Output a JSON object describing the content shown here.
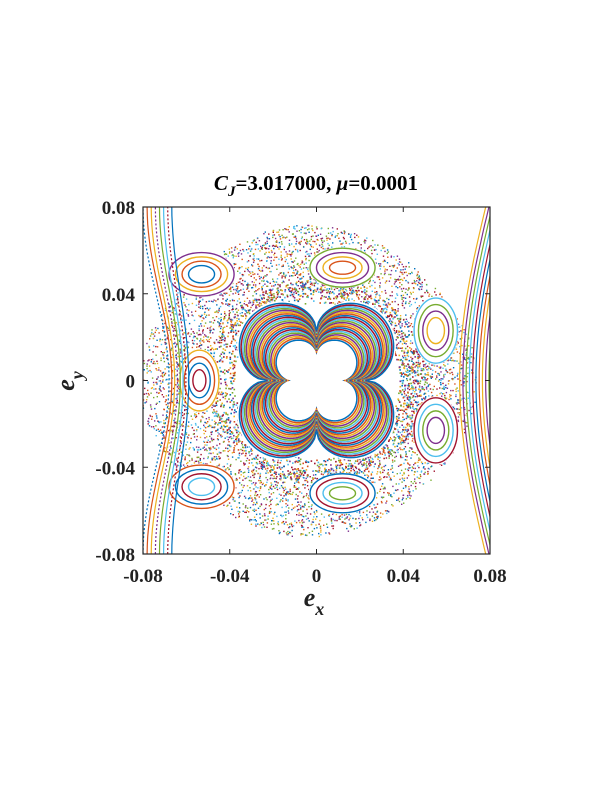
{
  "chart_data": {
    "type": "scatter",
    "title_parts": {
      "var": "C",
      "sub": "J",
      "rest": "=3.017000, ",
      "greek": "μ",
      "tail": "=0.0001"
    },
    "xlabel": {
      "main": "e",
      "sub": "x"
    },
    "ylabel": {
      "main": "e",
      "sub": "y"
    },
    "xlim": [
      -0.08,
      0.08
    ],
    "ylim": [
      -0.08,
      0.08
    ],
    "x_ticks": [
      -0.08,
      -0.04,
      0,
      0.04,
      0.08
    ],
    "y_ticks": [
      -0.08,
      -0.04,
      0,
      0.04,
      0.08
    ],
    "x_tick_labels": [
      "-0.08",
      "-0.04",
      "0",
      "0.04",
      "0.08"
    ],
    "y_tick_labels": [
      "-0.08",
      "-0.04",
      "0",
      "0.04",
      "0.08"
    ],
    "grid": false,
    "legend": "none",
    "series": [
      {
        "kind": "island",
        "center": [
          -0.053,
          0.049
        ],
        "radii": [
          [
            0.006,
            0.004
          ],
          [
            0.009,
            0.006
          ],
          [
            0.012,
            0.008
          ],
          [
            0.015,
            0.01
          ]
        ]
      },
      {
        "kind": "island",
        "center": [
          0.012,
          0.052
        ],
        "radii": [
          [
            0.006,
            0.003
          ],
          [
            0.009,
            0.005
          ],
          [
            0.012,
            0.007
          ],
          [
            0.015,
            0.009
          ]
        ]
      },
      {
        "kind": "island",
        "center": [
          0.055,
          0.023
        ],
        "radii": [
          [
            0.004,
            0.006
          ],
          [
            0.006,
            0.009
          ],
          [
            0.008,
            0.012
          ],
          [
            0.01,
            0.015
          ]
        ]
      },
      {
        "kind": "island",
        "center": [
          0.055,
          -0.023
        ],
        "radii": [
          [
            0.004,
            0.006
          ],
          [
            0.006,
            0.009
          ],
          [
            0.008,
            0.012
          ],
          [
            0.01,
            0.015
          ]
        ]
      },
      {
        "kind": "island",
        "center": [
          0.012,
          -0.052
        ],
        "radii": [
          [
            0.006,
            0.003
          ],
          [
            0.009,
            0.005
          ],
          [
            0.012,
            0.007
          ],
          [
            0.015,
            0.009
          ]
        ]
      },
      {
        "kind": "island",
        "center": [
          -0.053,
          -0.049
        ],
        "radii": [
          [
            0.006,
            0.004
          ],
          [
            0.009,
            0.006
          ],
          [
            0.012,
            0.008
          ],
          [
            0.015,
            0.01
          ]
        ]
      },
      {
        "kind": "island",
        "center": [
          -0.054,
          0.0
        ],
        "radii": [
          [
            0.003,
            0.005
          ],
          [
            0.005,
            0.008
          ],
          [
            0.007,
            0.011
          ],
          [
            0.009,
            0.014
          ]
        ]
      },
      {
        "kind": "central-lobes",
        "center": [
          0.0,
          0.0
        ],
        "scales": [
          0.022,
          0.026,
          0.03,
          0.034,
          0.038,
          0.042
        ]
      },
      {
        "kind": "chaotic-sea",
        "r_inner": 0.046,
        "r_outer": 0.072
      },
      {
        "kind": "outer-arcs",
        "note": "invariant curves near left and right edges"
      }
    ]
  },
  "colors": {
    "palette": [
      "#0072BD",
      "#D95319",
      "#EDB120",
      "#7E2F8E",
      "#77AC30",
      "#4DBEEE",
      "#A2142F"
    ],
    "axes": "#262626",
    "center_fill": "#ffffff"
  }
}
